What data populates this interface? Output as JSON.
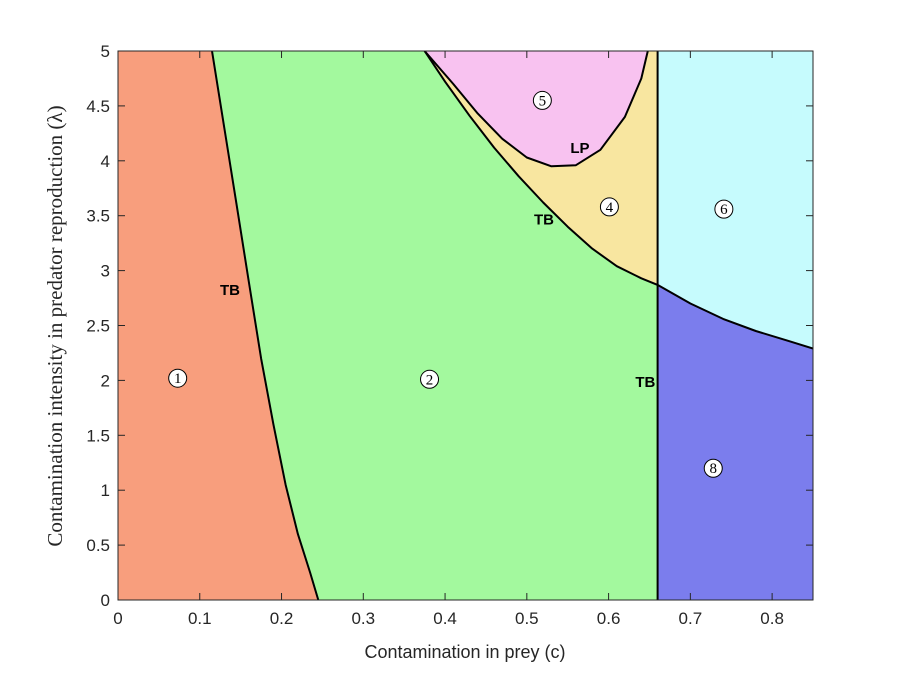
{
  "chart_data": {
    "type": "area",
    "xlabel": "Contamination in prey (c)",
    "ylabel": "Contamination intensity in predator reproduction (λ)",
    "xlim": [
      0,
      0.85
    ],
    "ylim": [
      0,
      5
    ],
    "xticks": [
      "0",
      "0.1",
      "0.2",
      "0.3",
      "0.4",
      "0.5",
      "0.6",
      "0.7",
      "0.8"
    ],
    "yticks": [
      "0",
      "0.5",
      "1",
      "1.5",
      "2",
      "2.5",
      "3",
      "3.5",
      "4",
      "4.5",
      "5"
    ],
    "grid": false,
    "regions": [
      {
        "label": "1",
        "color": "#f89e7d",
        "label_at": {
          "c": 0.073,
          "lambda": 2.02
        }
      },
      {
        "label": "2",
        "color": "#a3f99e",
        "label_at": {
          "c": 0.381,
          "lambda": 2.01
        }
      },
      {
        "label": "4",
        "color": "#f8e6a0",
        "label_at": {
          "c": 0.601,
          "lambda": 3.58
        }
      },
      {
        "label": "5",
        "color": "#f8c2f0",
        "label_at": {
          "c": 0.519,
          "lambda": 4.55
        }
      },
      {
        "label": "6",
        "color": "#c6fbfd",
        "label_at": {
          "c": 0.741,
          "lambda": 3.56
        }
      },
      {
        "label": "8",
        "color": "#7b7ded",
        "label_at": {
          "c": 0.728,
          "lambda": 1.2
        }
      }
    ],
    "curves": [
      {
        "name": "TB",
        "label_at": {
          "c": 0.137,
          "lambda": 2.78
        },
        "points": [
          [
            0.115,
            5.0
          ],
          [
            0.13,
            4.3
          ],
          [
            0.145,
            3.6
          ],
          [
            0.16,
            2.9
          ],
          [
            0.175,
            2.2
          ],
          [
            0.19,
            1.6
          ],
          [
            0.205,
            1.05
          ],
          [
            0.22,
            0.6
          ],
          [
            0.235,
            0.25
          ],
          [
            0.245,
            0.0
          ]
        ]
      },
      {
        "name": "TB",
        "label_at": {
          "c": 0.521,
          "lambda": 3.42
        },
        "points": [
          [
            0.375,
            5.0
          ],
          [
            0.4,
            4.72
          ],
          [
            0.43,
            4.41
          ],
          [
            0.46,
            4.12
          ],
          [
            0.49,
            3.86
          ],
          [
            0.52,
            3.62
          ],
          [
            0.55,
            3.4
          ],
          [
            0.58,
            3.2
          ],
          [
            0.61,
            3.04
          ],
          [
            0.64,
            2.93
          ],
          [
            0.66,
            2.87
          ]
        ]
      },
      {
        "name": "TB",
        "label_at": {
          "c": 0.645,
          "lambda": 1.94
        },
        "points": [
          [
            0.66,
            0.0
          ],
          [
            0.66,
            5.0
          ]
        ]
      },
      {
        "name": "",
        "points": [
          [
            0.66,
            2.87
          ],
          [
            0.7,
            2.7
          ],
          [
            0.74,
            2.56
          ],
          [
            0.78,
            2.45
          ],
          [
            0.82,
            2.36
          ],
          [
            0.85,
            2.29
          ]
        ]
      },
      {
        "name": "LP",
        "label_at": {
          "c": 0.565,
          "lambda": 4.07
        },
        "points": [
          [
            0.375,
            5.0
          ],
          [
            0.41,
            4.7
          ],
          [
            0.44,
            4.43
          ],
          [
            0.47,
            4.2
          ],
          [
            0.5,
            4.03
          ],
          [
            0.53,
            3.95
          ],
          [
            0.56,
            3.96
          ],
          [
            0.59,
            4.1
          ],
          [
            0.62,
            4.4
          ],
          [
            0.64,
            4.75
          ],
          [
            0.648,
            5.0
          ]
        ]
      }
    ]
  }
}
